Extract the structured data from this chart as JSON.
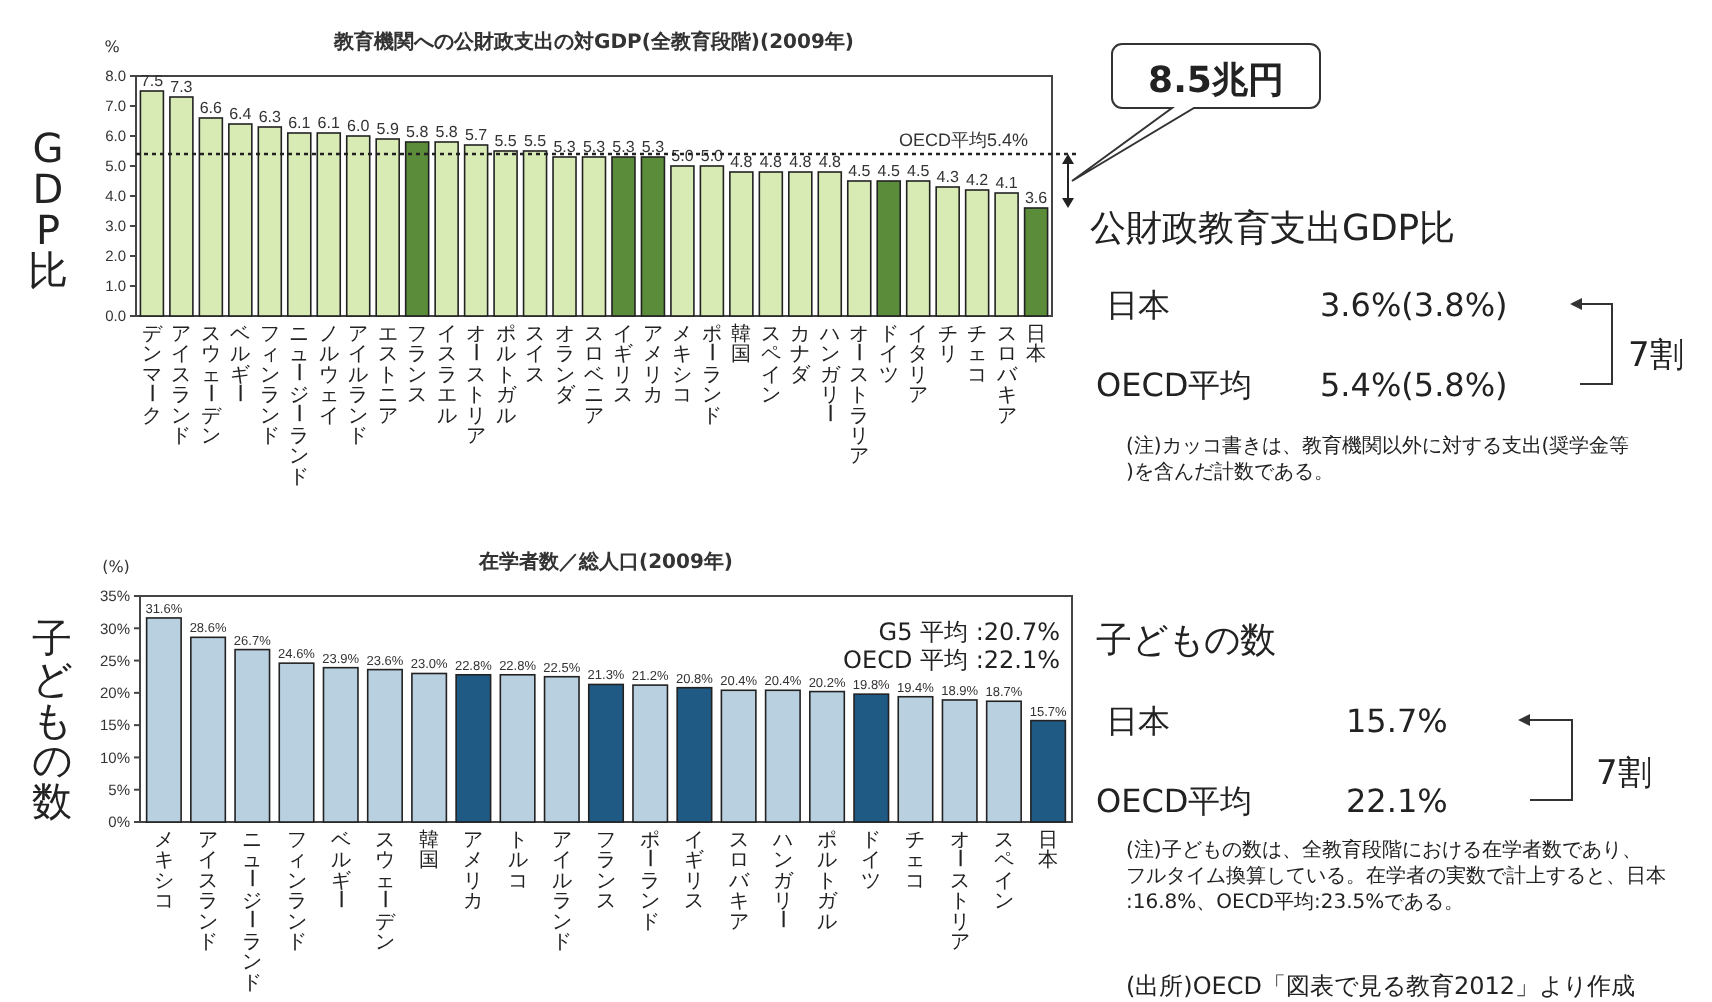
{
  "chart_data": [
    {
      "type": "bar",
      "title": "教育機関への公財政支出の対GDP(全教育段階)(2009年)",
      "ylabel": "%",
      "categories": [
        "デンマーク",
        "アイスランド",
        "スウェーデン",
        "ベルギー",
        "フィンランド",
        "ニュージーランド",
        "ノルウェイ",
        "アイルランド",
        "エストニア",
        "フランス",
        "イスラエル",
        "オーストリア",
        "ポルトガル",
        "スイス",
        "オランダ",
        "スロベニア",
        "イギリス",
        "アメリカ",
        "メキシコ",
        "ポーランド",
        "韓国",
        "スペイン",
        "カナダ",
        "ハンガリー",
        "オーストラリア",
        "ドイツ",
        "イタリア",
        "チリ",
        "チェコ",
        "スロバキア",
        "日本"
      ],
      "values": [
        7.5,
        7.3,
        6.6,
        6.4,
        6.3,
        6.1,
        6.1,
        6.0,
        5.9,
        5.8,
        5.8,
        5.7,
        5.5,
        5.5,
        5.3,
        5.3,
        5.3,
        5.3,
        5.0,
        5.0,
        4.8,
        4.8,
        4.8,
        4.8,
        4.5,
        4.5,
        4.5,
        4.3,
        4.2,
        4.1,
        3.6
      ],
      "colors": [
        "#d8ebb5",
        "#d8ebb5",
        "#d8ebb5",
        "#d8ebb5",
        "#d8ebb5",
        "#d8ebb5",
        "#d8ebb5",
        "#d8ebb5",
        "#d8ebb5",
        "#5b8c3a",
        "#d8ebb5",
        "#d8ebb5",
        "#d8ebb5",
        "#d8ebb5",
        "#d8ebb5",
        "#d8ebb5",
        "#5b8c3a",
        "#5b8c3a",
        "#d8ebb5",
        "#d8ebb5",
        "#d8ebb5",
        "#d8ebb5",
        "#d8ebb5",
        "#d8ebb5",
        "#d8ebb5",
        "#5b8c3a",
        "#d8ebb5",
        "#d8ebb5",
        "#d8ebb5",
        "#d8ebb5",
        "#5b8c3a"
      ],
      "ylim": [
        0,
        8
      ],
      "yticks": [
        {
          "value": 0,
          "label": "0.0"
        },
        {
          "value": 1,
          "label": "1.0"
        },
        {
          "value": 2,
          "label": "2.0"
        },
        {
          "value": 3,
          "label": "3.0"
        },
        {
          "value": 4,
          "label": "4.0"
        },
        {
          "value": 5,
          "label": "5.0"
        },
        {
          "value": 6,
          "label": "6.0"
        },
        {
          "value": 7,
          "label": "7.0"
        },
        {
          "value": 8,
          "label": "8.0"
        }
      ],
      "value_labels": [
        "7.5",
        "7.3",
        "6.6",
        "6.4",
        "6.3",
        "6.1",
        "6.1",
        "6.0",
        "5.9",
        "5.8",
        "5.8",
        "5.7",
        "5.5",
        "5.5",
        "5.3",
        "5.3",
        "5.3",
        "5.3",
        "5.0",
        "5.0",
        "4.8",
        "4.8",
        "4.8",
        "4.8",
        "4.5",
        "4.5",
        "4.5",
        "4.3",
        "4.2",
        "4.1",
        "3.6"
      ],
      "ref_lines": [
        {
          "axis": "y",
          "value": 5.4,
          "label": "OECD平均5.4%",
          "line_style": "dotted"
        }
      ],
      "annotations": [
        "GDP比",
        "8.5兆円",
        "公財政教育支出GDP比",
        "日本",
        "3.6%(3.8%)",
        "OECD平均",
        "5.4%(5.8%)",
        "7割",
        "(注)カッコ書きは、教育機関以外に対する支出(奨学金等)を含んだ計数である。"
      ]
    },
    {
      "type": "bar",
      "title": "在学者数／総人口(2009年)",
      "ylabel": "(%)",
      "categories": [
        "メキシコ",
        "アイスランド",
        "ニュージーランド",
        "フィンランド",
        "ベルギー",
        "スウェーデン",
        "韓国",
        "アメリカ",
        "トルコ",
        "アイルランド",
        "フランス",
        "ポーランド",
        "イギリス",
        "スロバキア",
        "ハンガリー",
        "ポルトガル",
        "ドイツ",
        "チェコ",
        "オーストリア",
        "スペイン",
        "日本"
      ],
      "values": [
        31.6,
        28.6,
        26.7,
        24.6,
        23.9,
        23.6,
        23.0,
        22.8,
        22.8,
        22.5,
        21.3,
        21.2,
        20.8,
        20.4,
        20.4,
        20.2,
        19.8,
        19.4,
        18.9,
        18.7,
        15.7
      ],
      "value_labels": [
        "31.6%",
        "28.6%",
        "26.7%",
        "24.6%",
        "23.9%",
        "23.6%",
        "23.0%",
        "22.8%",
        "22.8%",
        "22.5%",
        "21.3%",
        "21.2%",
        "20.8%",
        "20.4%",
        "20.4%",
        "20.2%",
        "19.8%",
        "19.4%",
        "18.9%",
        "18.7%",
        "15.7%"
      ],
      "colors": [
        "#b8d0e0",
        "#b8d0e0",
        "#b8d0e0",
        "#b8d0e0",
        "#b8d0e0",
        "#b8d0e0",
        "#b8d0e0",
        "#1f5a85",
        "#b8d0e0",
        "#b8d0e0",
        "#1f5a85",
        "#b8d0e0",
        "#1f5a85",
        "#b8d0e0",
        "#b8d0e0",
        "#b8d0e0",
        "#1f5a85",
        "#b8d0e0",
        "#b8d0e0",
        "#b8d0e0",
        "#1f5a85"
      ],
      "ylim": [
        0,
        35
      ],
      "yticks": [
        {
          "value": 0,
          "label": "0%"
        },
        {
          "value": 5,
          "label": "5%"
        },
        {
          "value": 10,
          "label": "10%"
        },
        {
          "value": 15,
          "label": "15%"
        },
        {
          "value": 20,
          "label": "20%"
        },
        {
          "value": 25,
          "label": "25%"
        },
        {
          "value": 30,
          "label": "30%"
        },
        {
          "value": 35,
          "label": "35%"
        }
      ],
      "annotations": [
        "子どもの数",
        "G5 平均 :20.7%",
        "OECD 平均 :22.1%",
        "子どもの数",
        "日本",
        "15.7%",
        "OECD平均",
        "22.1%",
        "7割",
        "(注)子どもの数は、全教育段階における在学者数であり、フルタイム換算している。在学者の実数で計上すると、日本:16.8%、OECD平均:23.5%である。",
        "(出所)OECD「図表で見る教育2012」より作成"
      ]
    }
  ]
}
